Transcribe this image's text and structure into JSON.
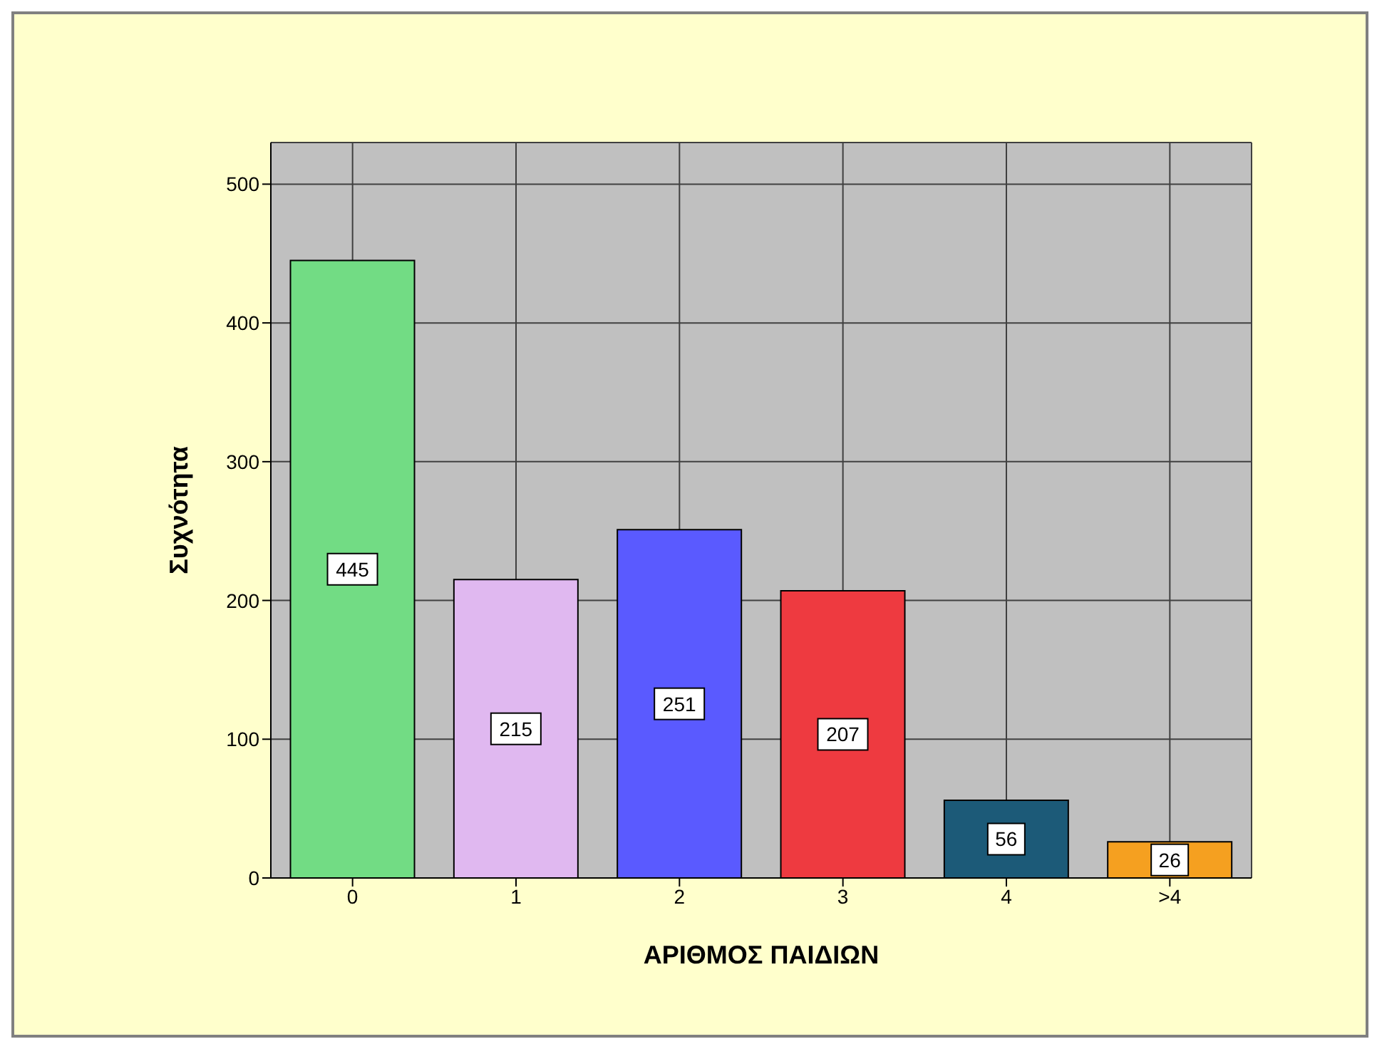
{
  "chart_data": {
    "type": "bar",
    "xlabel": "ΑΡΙΘΜΟΣ ΠΑΙΔΙΩΝ",
    "ylabel": "Συχνότητα",
    "categories": [
      "0",
      "1",
      "2",
      "3",
      "4",
      ">4"
    ],
    "values": [
      445,
      215,
      251,
      207,
      56,
      26
    ],
    "colors": [
      "#72dc84",
      "#e0b8f0",
      "#5a5aff",
      "#ee3a40",
      "#1c5a78",
      "#f5a020"
    ],
    "ylim": [
      0,
      530
    ],
    "yticks": [
      0,
      100,
      200,
      300,
      400,
      500
    ],
    "grid": true,
    "data_labels": true
  }
}
